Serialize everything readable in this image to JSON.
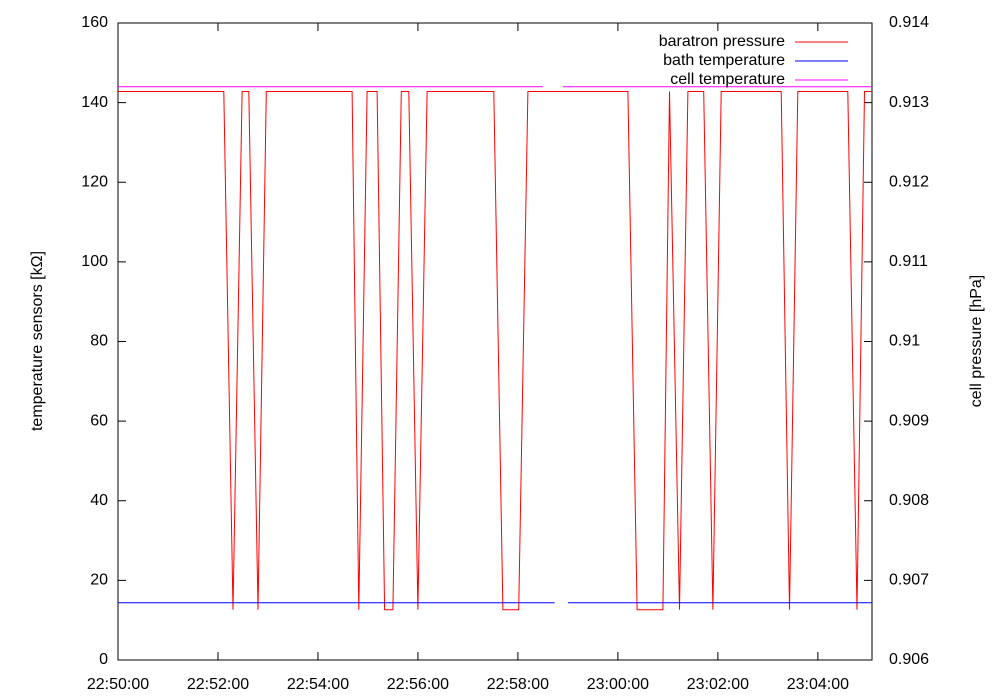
{
  "chart_data": {
    "type": "line",
    "ylabel": "temperature sensors [kΩ]",
    "y2label": "cell pressure [hPa]",
    "xlim": [
      "22:50:00",
      "23:05:05"
    ],
    "xticks": [
      "22:50:00",
      "22:52:00",
      "22:54:00",
      "22:56:00",
      "22:58:00",
      "23:00:00",
      "23:02:00",
      "23:04:00"
    ],
    "ylim": [
      0,
      160
    ],
    "yticks": [
      0,
      20,
      40,
      60,
      80,
      100,
      120,
      140,
      160
    ],
    "y2lim": [
      0.906,
      0.914
    ],
    "y2ticks": [
      0.906,
      0.907,
      0.908,
      0.909,
      0.91,
      0.911,
      0.912,
      0.913,
      0.914
    ],
    "legend": "top-right",
    "series": [
      {
        "name": "baratron pressure",
        "color": "#ff0000",
        "axis": "y2",
        "x": [
          "22:50:00",
          "22:52:07",
          "22:52:18",
          "22:52:29",
          "22:52:37",
          "22:52:48",
          "22:52:58",
          "22:54:41",
          "22:54:49",
          "22:54:59",
          "22:55:11",
          "22:55:20",
          "22:55:30",
          "22:55:40",
          "22:55:49",
          "22:56:00",
          "22:56:11",
          "22:57:31",
          "22:57:42",
          "22:58:01",
          "22:58:12",
          "23:00:12",
          "23:00:23",
          "23:00:54",
          "23:01:02",
          "23:01:14",
          "23:01:24",
          "23:01:43",
          "23:01:54",
          "23:02:04",
          "23:03:16",
          "23:03:26",
          "23:03:36",
          "23:04:36",
          "23:04:47",
          "23:04:56",
          "23:05:05"
        ],
        "values": [
          0.91314,
          0.91314,
          0.90663,
          0.91314,
          0.91314,
          0.90663,
          0.91314,
          0.91314,
          0.90663,
          0.91314,
          0.91314,
          0.90663,
          0.90663,
          0.91314,
          0.91314,
          0.90663,
          0.91314,
          0.91314,
          0.90663,
          0.90663,
          0.91314,
          0.91314,
          0.90663,
          0.90663,
          0.91314,
          0.90663,
          0.91314,
          0.91314,
          0.90663,
          0.91314,
          0.91314,
          0.90663,
          0.91314,
          0.91314,
          0.90663,
          0.91314,
          0.91314
        ]
      },
      {
        "name": "bath temperature",
        "color": "#0000ff",
        "x": [
          "22:50:00",
          "22:58:44",
          "22:58:52",
          "22:59:00",
          "23:05:05"
        ],
        "values": [
          14.4,
          14.4,
          null,
          14.4,
          14.4
        ]
      },
      {
        "name": "cell temperature",
        "color": "#ff00ff",
        "x": [
          "22:50:00",
          "22:58:30",
          "22:58:42",
          "22:58:54",
          "23:05:05"
        ],
        "values": [
          144.0,
          144.0,
          null,
          144.0,
          144.0
        ]
      }
    ]
  }
}
